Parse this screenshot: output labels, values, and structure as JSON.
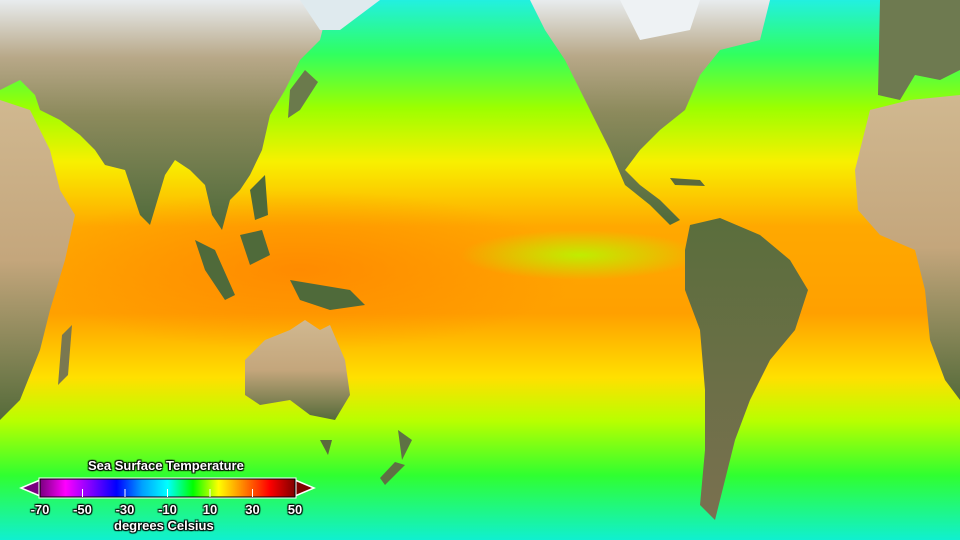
{
  "legend": {
    "title": "Sea Surface Temperature",
    "unit": "degrees Celsius",
    "ticks": [
      "-70",
      "-50",
      "-30",
      "-10",
      "10",
      "30",
      "50"
    ],
    "range": [
      -70,
      50
    ],
    "colormap": [
      "#7a0080",
      "#ff00ff",
      "#8000ff",
      "#0000ff",
      "#00a0ff",
      "#00ffff",
      "#00ff00",
      "#ffff00",
      "#ff8000",
      "#ff0000",
      "#800000"
    ],
    "extends": [
      "below",
      "above"
    ]
  },
  "map": {
    "projection": "equirectangular, Pacific-centered",
    "land_colors": {
      "desert": "#c8ad86",
      "forest": "#4f6a3a",
      "ice": "#eef2f4"
    }
  }
}
